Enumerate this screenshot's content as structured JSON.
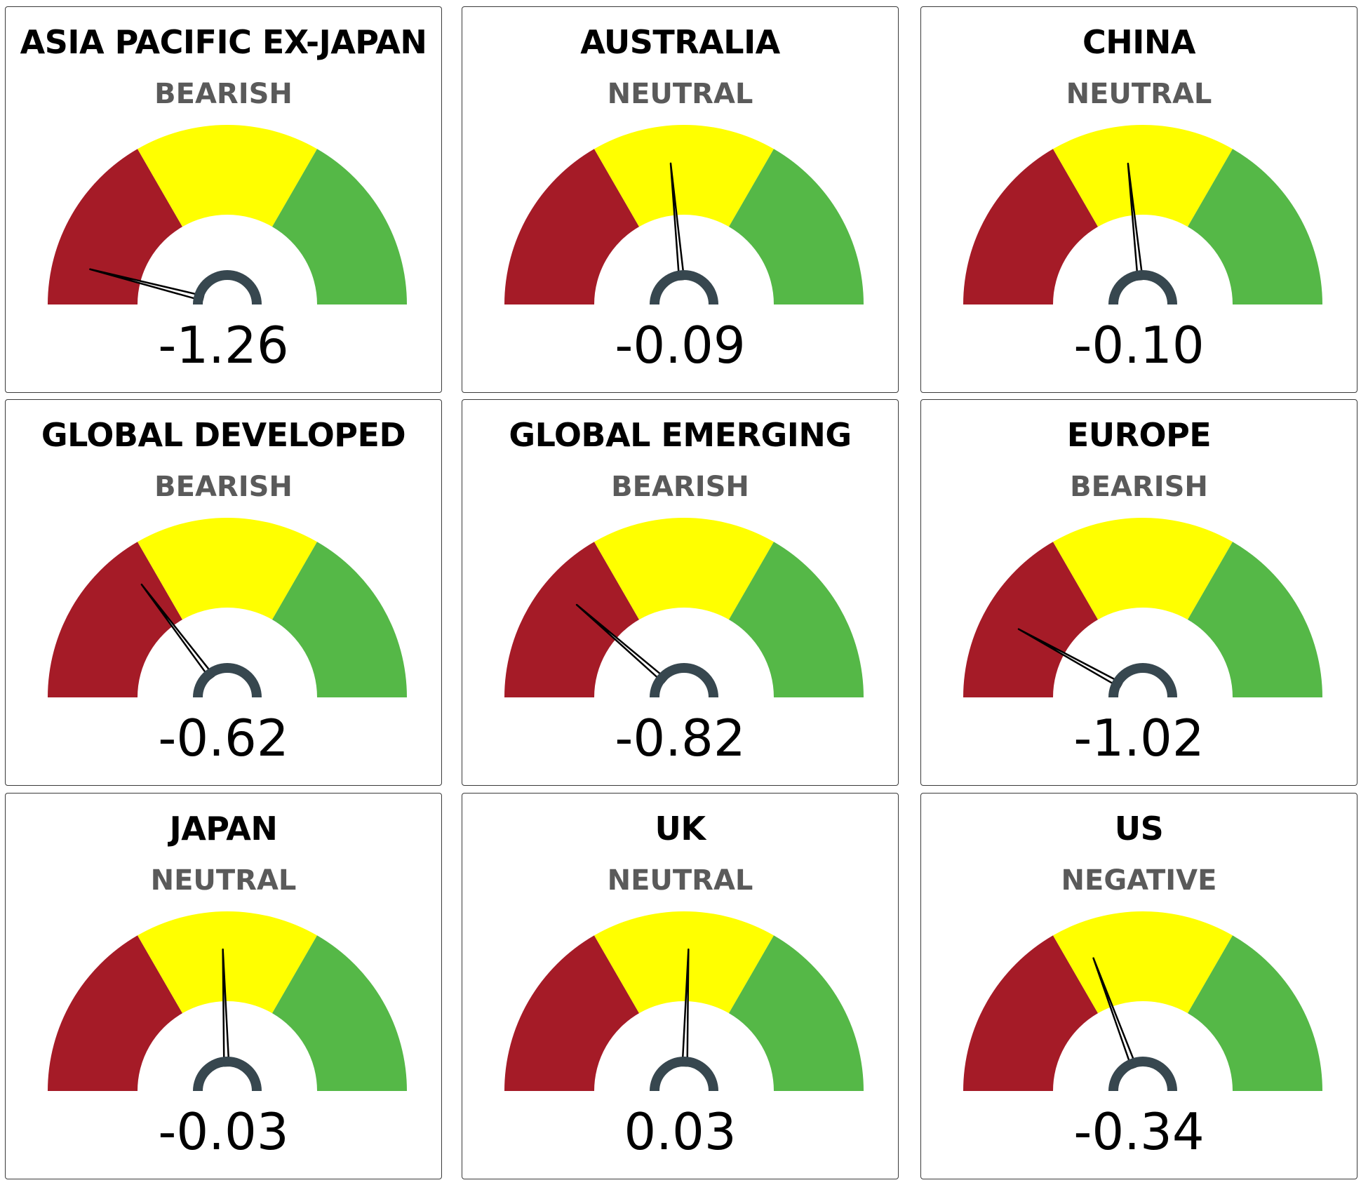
{
  "colors": {
    "bearish_zone": "#a51b27",
    "neutral_zone": "#ffff00",
    "bullish_zone": "#55b847",
    "needle": "#000000",
    "hub": "#37474f",
    "status_text": "#5a5a5a",
    "border": "#3a3a3a"
  },
  "chart_data": [
    {
      "type": "gauge",
      "title": "ASIA PACIFIC EX-JAPAN",
      "status": "BEARISH",
      "value": -1.26,
      "value_label": "-1.26",
      "range": [
        -1.5,
        1.5
      ],
      "bands": [
        {
          "from": -1.5,
          "to": -0.5,
          "color": "#a51b27"
        },
        {
          "from": -0.5,
          "to": 0.5,
          "color": "#ffff00"
        },
        {
          "from": 0.5,
          "to": 1.5,
          "color": "#55b847"
        }
      ]
    },
    {
      "type": "gauge",
      "title": "AUSTRALIA",
      "status": "NEUTRAL",
      "value": -0.09,
      "value_label": "-0.09",
      "range": [
        -1.5,
        1.5
      ],
      "bands": [
        {
          "from": -1.5,
          "to": -0.5,
          "color": "#a51b27"
        },
        {
          "from": -0.5,
          "to": 0.5,
          "color": "#ffff00"
        },
        {
          "from": 0.5,
          "to": 1.5,
          "color": "#55b847"
        }
      ]
    },
    {
      "type": "gauge",
      "title": "CHINA",
      "status": "NEUTRAL",
      "value": -0.1,
      "value_label": "-0.10",
      "range": [
        -1.5,
        1.5
      ],
      "bands": [
        {
          "from": -1.5,
          "to": -0.5,
          "color": "#a51b27"
        },
        {
          "from": -0.5,
          "to": 0.5,
          "color": "#ffff00"
        },
        {
          "from": 0.5,
          "to": 1.5,
          "color": "#55b847"
        }
      ]
    },
    {
      "type": "gauge",
      "title": "GLOBAL DEVELOPED",
      "status": "BEARISH",
      "value": -0.62,
      "value_label": "-0.62",
      "range": [
        -1.5,
        1.5
      ],
      "bands": [
        {
          "from": -1.5,
          "to": -0.5,
          "color": "#a51b27"
        },
        {
          "from": -0.5,
          "to": 0.5,
          "color": "#ffff00"
        },
        {
          "from": 0.5,
          "to": 1.5,
          "color": "#55b847"
        }
      ]
    },
    {
      "type": "gauge",
      "title": "GLOBAL EMERGING",
      "status": "BEARISH",
      "value": -0.82,
      "value_label": "-0.82",
      "range": [
        -1.5,
        1.5
      ],
      "bands": [
        {
          "from": -1.5,
          "to": -0.5,
          "color": "#a51b27"
        },
        {
          "from": -0.5,
          "to": 0.5,
          "color": "#ffff00"
        },
        {
          "from": 0.5,
          "to": 1.5,
          "color": "#55b847"
        }
      ]
    },
    {
      "type": "gauge",
      "title": "EUROPE",
      "status": "BEARISH",
      "value": -1.02,
      "value_label": "-1.02",
      "range": [
        -1.5,
        1.5
      ],
      "bands": [
        {
          "from": -1.5,
          "to": -0.5,
          "color": "#a51b27"
        },
        {
          "from": -0.5,
          "to": 0.5,
          "color": "#ffff00"
        },
        {
          "from": 0.5,
          "to": 1.5,
          "color": "#55b847"
        }
      ]
    },
    {
      "type": "gauge",
      "title": "JAPAN",
      "status": "NEUTRAL",
      "value": -0.03,
      "value_label": "-0.03",
      "range": [
        -1.5,
        1.5
      ],
      "bands": [
        {
          "from": -1.5,
          "to": -0.5,
          "color": "#a51b27"
        },
        {
          "from": -0.5,
          "to": 0.5,
          "color": "#ffff00"
        },
        {
          "from": 0.5,
          "to": 1.5,
          "color": "#55b847"
        }
      ]
    },
    {
      "type": "gauge",
      "title": "UK",
      "status": "NEUTRAL",
      "value": 0.03,
      "value_label": "0.03",
      "range": [
        -1.5,
        1.5
      ],
      "bands": [
        {
          "from": -1.5,
          "to": -0.5,
          "color": "#a51b27"
        },
        {
          "from": -0.5,
          "to": 0.5,
          "color": "#ffff00"
        },
        {
          "from": 0.5,
          "to": 1.5,
          "color": "#55b847"
        }
      ]
    },
    {
      "type": "gauge",
      "title": "US",
      "status": "NEGATIVE",
      "value": -0.34,
      "value_label": "-0.34",
      "range": [
        -1.5,
        1.5
      ],
      "bands": [
        {
          "from": -1.5,
          "to": -0.5,
          "color": "#a51b27"
        },
        {
          "from": -0.5,
          "to": 0.5,
          "color": "#ffff00"
        },
        {
          "from": 0.5,
          "to": 1.5,
          "color": "#55b847"
        }
      ]
    }
  ]
}
